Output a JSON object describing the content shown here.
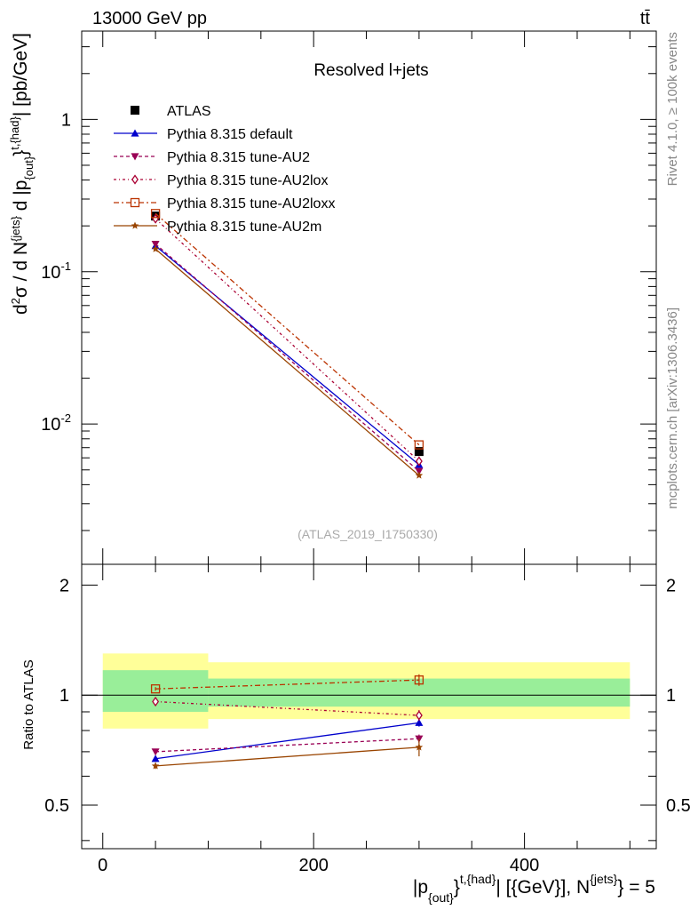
{
  "header": {
    "beam_label": "13000 GeV pp",
    "process_label": "tt̄"
  },
  "side_labels": {
    "rivet": "Rivet 4.1.0, ≥ 100k events",
    "mcplots": "mcplots.cern.ch [arXiv:1306.3436]"
  },
  "chart_data": [
    {
      "type": "line",
      "panel": "main",
      "title": "Resolved l+jets",
      "analysis_tag": "(ATLAS_2019_I1750330)",
      "yscale": "log",
      "ylabel": "d²σ / d N^{jets} d |p_{out}^{t,{had}}| [pb/GeV]",
      "xlim": [
        -20,
        525
      ],
      "ylim": [
        0.0012,
        3.8
      ],
      "y_ticks": [
        {
          "value": 1,
          "label": "1"
        },
        {
          "value": 0.1,
          "label": "10^{-1}"
        },
        {
          "value": 0.01,
          "label": "10^{-2}"
        }
      ],
      "legend_position": "top-left",
      "x": [
        50,
        300
      ],
      "series": [
        {
          "name": "ATLAS",
          "values": [
            0.232,
            0.0066
          ],
          "color": "#000000",
          "marker": "square-filled"
        },
        {
          "name": "Pythia 8.315 default",
          "values": [
            0.148,
            0.0054
          ],
          "color": "#0000cc",
          "marker": "triangle-up"
        },
        {
          "name": "Pythia 8.315 tune-AU2",
          "values": [
            0.152,
            0.0049
          ],
          "color": "#990055",
          "marker": "triangle-down"
        },
        {
          "name": "Pythia 8.315 tune-AU2lox",
          "values": [
            0.223,
            0.0057
          ],
          "color": "#aa0033",
          "marker": "diamond-open"
        },
        {
          "name": "Pythia 8.315 tune-AU2loxx",
          "values": [
            0.241,
            0.0073
          ],
          "color": "#bb3300",
          "marker": "square-open"
        },
        {
          "name": "Pythia 8.315 tune-AU2m",
          "values": [
            0.141,
            0.0046
          ],
          "color": "#994400",
          "marker": "star"
        }
      ]
    },
    {
      "type": "line",
      "panel": "ratio",
      "ylabel": "Ratio to ATLAS",
      "xlabel": "|p_{out}^{t,{had}}| [{GeV}], N^{jets} = 5",
      "xlim": [
        -20,
        525
      ],
      "ylim": [
        0.38,
        2.28
      ],
      "x_ticks": [
        0,
        200,
        400
      ],
      "y_ticks": [
        0.5,
        1,
        2
      ],
      "x": [
        50,
        300
      ],
      "bands": {
        "bins": [
          [
            0,
            100
          ],
          [
            100,
            500
          ]
        ],
        "yellow": [
          [
            0.81,
            1.3
          ],
          [
            0.86,
            1.23
          ]
        ],
        "green": [
          [
            0.9,
            1.17
          ],
          [
            0.93,
            1.11
          ]
        ]
      },
      "series": [
        {
          "name": "Pythia 8.315 default",
          "values": [
            0.67,
            0.84
          ],
          "errors": [
            0.012,
            0.02
          ],
          "color": "#0000cc",
          "marker": "triangle-up"
        },
        {
          "name": "Pythia 8.315 tune-AU2",
          "values": [
            0.7,
            0.76
          ],
          "errors": [
            0.012,
            0.02
          ],
          "color": "#990055",
          "marker": "triangle-down"
        },
        {
          "name": "Pythia 8.315 tune-AU2lox",
          "values": [
            0.96,
            0.88
          ],
          "errors": [
            0.012,
            0.03
          ],
          "color": "#aa0033",
          "marker": "diamond-open"
        },
        {
          "name": "Pythia 8.315 tune-AU2loxx",
          "values": [
            1.04,
            1.1
          ],
          "errors": [
            0.012,
            0.04
          ],
          "color": "#bb3300",
          "marker": "square-open"
        },
        {
          "name": "Pythia 8.315 tune-AU2m",
          "values": [
            0.64,
            0.72
          ],
          "errors": [
            0.012,
            0.04
          ],
          "color": "#994400",
          "marker": "star"
        }
      ]
    }
  ]
}
